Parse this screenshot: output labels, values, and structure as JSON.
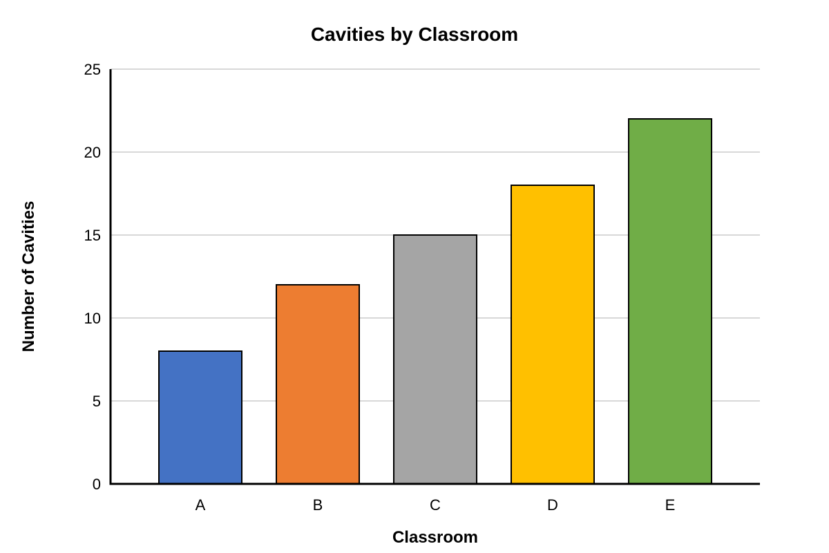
{
  "chart_data": {
    "type": "bar",
    "title": "Cavities by Classroom",
    "xlabel": "Classroom",
    "ylabel": "Number of Cavities",
    "categories": [
      "A",
      "B",
      "C",
      "D",
      "E"
    ],
    "values": [
      8,
      12,
      15,
      18,
      22
    ],
    "colors": [
      "#4472c4",
      "#ed7d31",
      "#a5a5a5",
      "#ffc000",
      "#70ad47"
    ],
    "ylim": [
      0,
      25
    ],
    "yticks": [
      "0",
      "5",
      "10",
      "15",
      "20",
      "25"
    ],
    "grid": true,
    "legend": "none"
  }
}
